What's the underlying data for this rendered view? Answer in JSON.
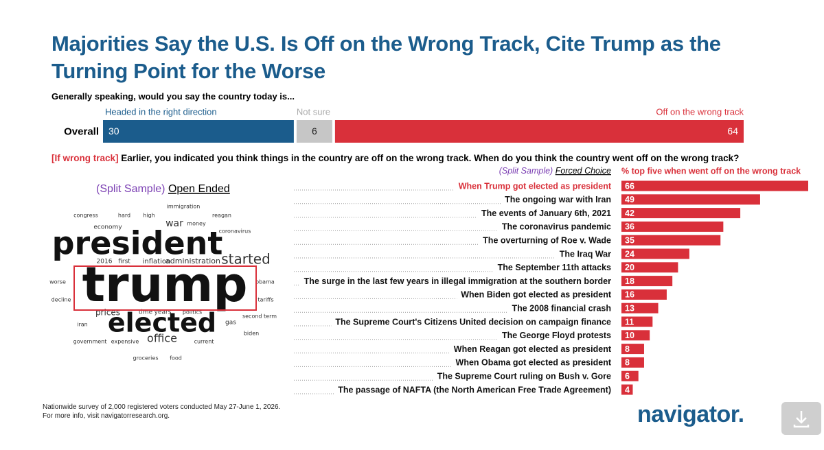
{
  "title": "Majorities Say the U.S. Is Off on the Wrong Track, Cite Trump as the Turning Point for the Worse",
  "chart_data": [
    {
      "type": "stacked-bar",
      "subtitle": "Generally speaking, would you say the country today is...",
      "categories": [
        "Overall"
      ],
      "series": [
        {
          "name": "Headed in the right direction",
          "color": "#1b5c8c",
          "values": [
            30
          ]
        },
        {
          "name": "Not sure",
          "color": "#c6c6c6",
          "values": [
            6
          ]
        },
        {
          "name": "Off on the wrong track",
          "color": "#d9303a",
          "values": [
            64
          ]
        }
      ],
      "xlim": [
        0,
        100
      ]
    },
    {
      "type": "hbar",
      "question_prefix": "[If wrong track]",
      "question": "Earlier, you indicated you think things in the country are off on the wrong track. When do you think the country went off on the wrong track?",
      "subtitle_prefix": "(Split Sample)",
      "subtitle": "Forced Choice",
      "series_name": "% top five when went off on the wrong track",
      "color": "#d9303a",
      "categories": [
        "When Trump got elected as president",
        "The ongoing war with Iran",
        "The events of January 6th, 2021",
        "The coronavirus pandemic",
        "The overturning of Roe v. Wade",
        "The Iraq War",
        "The September 11th attacks",
        "The surge in the last few years in illegal immigration at the southern border",
        "When Biden got elected as president",
        "The 2008 financial crash",
        "The Supreme Court's Citizens United decision on campaign finance",
        "The George Floyd protests",
        "When Reagan got elected as president",
        "When Obama got elected as president",
        "The Supreme Court ruling on Bush v. Gore",
        "The passage of NAFTA (the North American Free Trade Agreement)"
      ],
      "values": [
        66,
        49,
        42,
        36,
        35,
        24,
        20,
        18,
        16,
        13,
        11,
        10,
        8,
        8,
        6,
        4
      ],
      "xlim": [
        0,
        66
      ]
    }
  ],
  "word_cloud": {
    "title_prefix": "(Split Sample)",
    "title": "Open Ended",
    "words": [
      "immigration",
      "congress",
      "hard",
      "high",
      "reagan",
      "economy",
      "war",
      "money",
      "coronavirus",
      "president",
      "2016",
      "first",
      "inflation",
      "administration",
      "started",
      "worse",
      "trump",
      "obama",
      "decline",
      "tariffs",
      "prices",
      "time",
      "years",
      "politics",
      "second term",
      "iran",
      "elected",
      "gas",
      "office",
      "biden",
      "government",
      "expensive",
      "current",
      "groceries",
      "food"
    ]
  },
  "footer": [
    "Nationwide survey of 2,000 registered voters conducted May 27-June 1, 2026.",
    "For more info, visit navigatorresearch.org."
  ],
  "logo": "navigator."
}
